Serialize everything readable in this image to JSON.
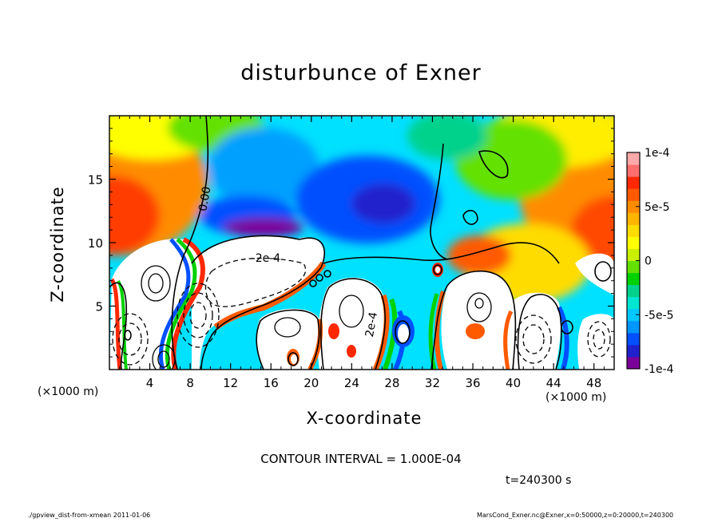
{
  "chart_data": {
    "type": "heatmap",
    "title": "disturbunce of Exner",
    "xlabel": "X-coordinate",
    "ylabel": "Z-coordinate",
    "x_unit_label": "(×1000 m)",
    "x_unit_label_right": "(×1000 m)",
    "xlim": [
      0,
      50
    ],
    "ylim": [
      0,
      20
    ],
    "x_ticks": [
      4,
      8,
      12,
      16,
      20,
      24,
      28,
      32,
      36,
      40,
      44,
      48
    ],
    "y_ticks": [
      5,
      10,
      15
    ],
    "colorbar": {
      "ticks": [
        {
          "value": 0.0001,
          "label": "1e-4"
        },
        {
          "value": 5e-05,
          "label": "5e-5"
        },
        {
          "value": 0,
          "label": "0"
        },
        {
          "value": -5e-05,
          "label": "-5e-5"
        },
        {
          "value": -0.0001,
          "label": "-1e-4"
        }
      ],
      "range": [
        -0.0001,
        0.0001
      ],
      "colors": [
        "#7b0099",
        "#2020cc",
        "#0050ff",
        "#0096ff",
        "#00c8ff",
        "#00e6d2",
        "#00d28c",
        "#00d200",
        "#64e100",
        "#c8f000",
        "#ffff00",
        "#ffdc00",
        "#ffb400",
        "#ff8c00",
        "#ff5a00",
        "#ff2800",
        "#ff6e6e",
        "#ffaaaa"
      ]
    },
    "contour_labels": [
      {
        "text": "0.00",
        "x": 9.8,
        "z": 13.4,
        "angle": -80
      },
      {
        "text": "-2e-4",
        "x": 15.5,
        "z": 8.5,
        "angle": 0
      },
      {
        "text": "2e-4",
        "x": 26.3,
        "z": 3.5,
        "angle": -80
      }
    ],
    "contour_interval_text": "CONTOUR INTERVAL = 1.000E-04",
    "time_text": "t=240300 s"
  },
  "footer": {
    "left": "./gpview_dist-from-xmean  2011-01-06",
    "right": "MarsCond_Exner.nc@Exner,x=0:50000,z=0:20000,t=240300"
  }
}
